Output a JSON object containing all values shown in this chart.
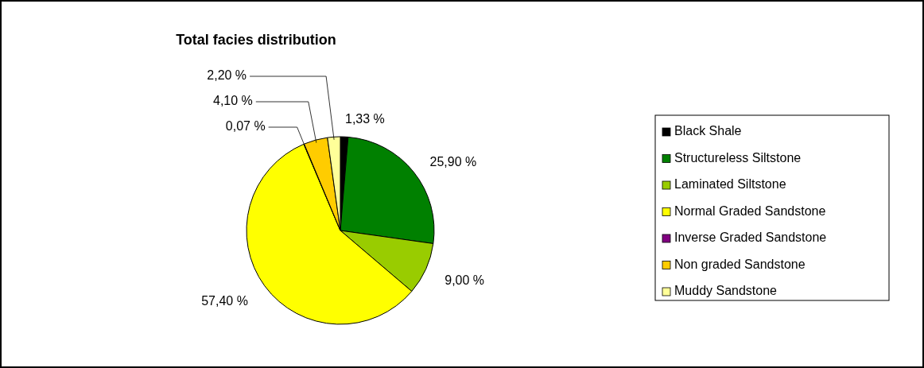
{
  "chart_data": {
    "type": "pie",
    "title": "Total facies distribution",
    "categories": [
      "Black Shale",
      "Structureless Siltstone",
      "Laminated Siltstone",
      "Normal Graded Sandstone",
      "Inverse Graded Sandstone",
      "Non graded Sandstone",
      "Muddy Sandstone"
    ],
    "values": [
      1.33,
      25.9,
      9.0,
      57.4,
      0.07,
      4.1,
      2.2
    ],
    "colors": [
      "#000000",
      "#008000",
      "#99cc00",
      "#ffff00",
      "#800080",
      "#ffcc00",
      "#ffff99"
    ],
    "value_labels": [
      "1,33 %",
      "25,90 %",
      "9,00 %",
      "57,40 %",
      "0,07 %",
      "4,10 %",
      "2,20 %"
    ],
    "legend": "right"
  }
}
